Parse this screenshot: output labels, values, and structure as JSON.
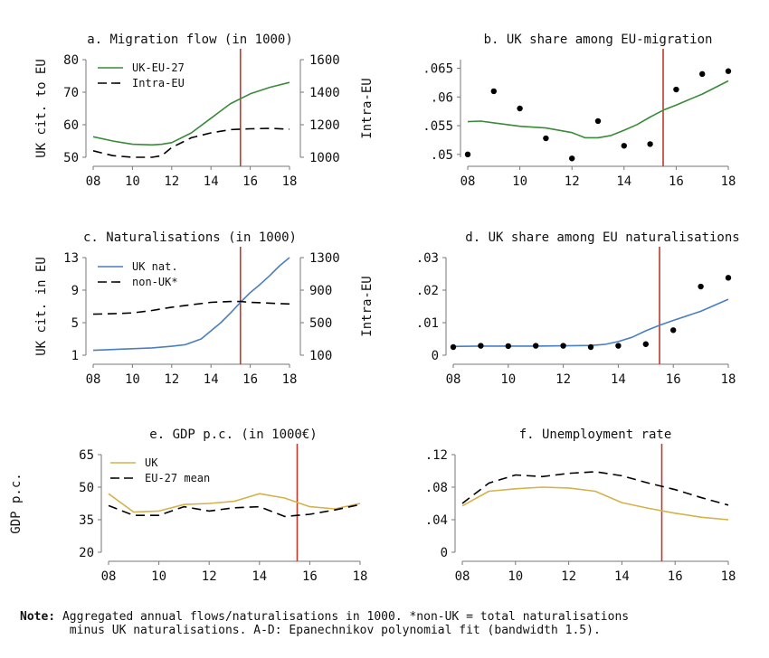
{
  "note": {
    "label": "Note:",
    "line1": " Aggregated annual flows/naturalisations in 1000. *non-UK = total naturalisations",
    "line2": "       minus UK naturalisations. A-D: Epanechnikov polynomial fit (bandwidth 1.5)."
  },
  "colors": {
    "green": "#3a8a3a",
    "blue": "#4a7fc0",
    "gold": "#d4b24c",
    "black": "#000000",
    "red": "#c0392b",
    "axis": "#777777"
  },
  "chart_data": [
    {
      "id": "a",
      "type": "line",
      "title": "a. Migration flow (in 1000)",
      "ylabel": "UK cit. to EU",
      "y2label": "Intra-EU",
      "xticks": [
        "08",
        "10",
        "12",
        "14",
        "16",
        "18"
      ],
      "xlim": [
        8,
        18
      ],
      "ylim": [
        50,
        80
      ],
      "yticks": [
        "50",
        "60",
        "70",
        "80"
      ],
      "y2lim": [
        1000,
        1600
      ],
      "y2ticks": [
        "1000",
        "1200",
        "1400",
        "1600"
      ],
      "vline": 15.5,
      "series": [
        {
          "name": "UK-EU-27",
          "color": "green",
          "dash": "",
          "axis": "left",
          "x": [
            8,
            9,
            10,
            11,
            11.5,
            12,
            13,
            14,
            15,
            16,
            17,
            18
          ],
          "y": [
            56.3,
            55,
            54,
            53.8,
            54,
            54.5,
            57.5,
            62,
            66.5,
            69.5,
            71.5,
            73
          ]
        },
        {
          "name": "Intra-EU",
          "color": "black",
          "dash": "10,6",
          "axis": "right",
          "x": [
            8,
            9,
            10,
            11,
            11.5,
            12,
            13,
            14,
            15,
            16,
            17,
            18
          ],
          "y": [
            1040,
            1010,
            1000,
            1000,
            1010,
            1060,
            1120,
            1150,
            1170,
            1175,
            1178,
            1172
          ]
        }
      ],
      "legend": "top-left"
    },
    {
      "id": "b",
      "type": "line",
      "title": "b. UK share among EU-migration",
      "ylabel": "Intra-EU",
      "xticks": [
        "08",
        "10",
        "12",
        "14",
        "16",
        "18"
      ],
      "xlim": [
        8,
        18
      ],
      "ylim": [
        0.0495,
        0.0665
      ],
      "yticks": [
        ".05",
        ".055",
        ".06",
        ".065"
      ],
      "yvals": [
        0.05,
        0.055,
        0.06,
        0.065
      ],
      "vline": 15.5,
      "series": [
        {
          "color": "green",
          "dash": "",
          "x": [
            8,
            8.5,
            9,
            10,
            11,
            12,
            12.5,
            13,
            13.5,
            14,
            14.5,
            15,
            15.5,
            16,
            17,
            18
          ],
          "y": [
            0.0557,
            0.0558,
            0.0555,
            0.0549,
            0.0546,
            0.0538,
            0.0529,
            0.0529,
            0.0533,
            0.0542,
            0.0552,
            0.0565,
            0.0577,
            0.0586,
            0.0605,
            0.0628
          ]
        },
        {
          "type": "scatter",
          "color": "black",
          "x": [
            8,
            9,
            10,
            11,
            12,
            13,
            14,
            15,
            16,
            17,
            18
          ],
          "y": [
            0.05,
            0.061,
            0.058,
            0.0528,
            0.0493,
            0.0558,
            0.0515,
            0.0518,
            0.0613,
            0.064,
            0.0645
          ]
        }
      ]
    },
    {
      "id": "c",
      "type": "line",
      "title": "c. Naturalisations (in 1000)",
      "ylabel": "UK cit. in EU",
      "xticks": [
        "08",
        "10",
        "12",
        "14",
        "16",
        "18"
      ],
      "xlim": [
        8,
        18
      ],
      "ylim": [
        1,
        13
      ],
      "yticks": [
        "1",
        "5",
        "9",
        "13"
      ],
      "y2lim": [
        100,
        1300
      ],
      "y2ticks": [
        "100",
        "500",
        "900",
        "1300"
      ],
      "vline": 15.5,
      "series": [
        {
          "name": "UK nat.",
          "color": "blue",
          "dash": "",
          "axis": "left",
          "x": [
            8,
            9,
            10,
            11,
            12,
            12.7,
            13.5,
            14,
            14.5,
            15,
            15.5,
            16,
            16.5,
            17,
            17.5,
            18
          ],
          "y": [
            1.6,
            1.7,
            1.8,
            1.9,
            2.1,
            2.3,
            3,
            4,
            5,
            6.2,
            7.5,
            8.7,
            9.7,
            10.8,
            12,
            13
          ]
        },
        {
          "name": "non-UK*",
          "color": "black",
          "dash": "10,6",
          "axis": "right",
          "x": [
            8,
            9,
            10,
            11,
            12,
            13,
            14,
            15,
            15.5,
            16,
            17,
            18
          ],
          "y": [
            605,
            610,
            620,
            650,
            690,
            720,
            750,
            760,
            760,
            750,
            740,
            730
          ]
        }
      ],
      "legend": "top-left"
    },
    {
      "id": "d",
      "type": "line",
      "title": "d. UK share among EU naturalisations",
      "ylabel": "Intra-EU",
      "xticks": [
        "08",
        "10",
        "12",
        "14",
        "16",
        "18"
      ],
      "xlim": [
        8,
        18
      ],
      "ylim": [
        0,
        0.03
      ],
      "yticks": [
        "0",
        ".01",
        ".02",
        ".03"
      ],
      "yvals": [
        0,
        0.01,
        0.02,
        0.03
      ],
      "vline": 15.5,
      "series": [
        {
          "color": "blue",
          "dash": "",
          "x": [
            8,
            9,
            10,
            11,
            12,
            13,
            13.5,
            14,
            14.5,
            15,
            15.5,
            16,
            17,
            18
          ],
          "y": [
            0.0027,
            0.0028,
            0.0028,
            0.0028,
            0.0029,
            0.003,
            0.0033,
            0.0042,
            0.0055,
            0.0075,
            0.0092,
            0.0107,
            0.0135,
            0.0172
          ]
        },
        {
          "type": "scatter",
          "color": "black",
          "x": [
            8,
            9,
            10,
            11,
            12,
            13,
            14,
            15,
            16,
            17,
            18
          ],
          "y": [
            0.0025,
            0.0029,
            0.0028,
            0.0029,
            0.0029,
            0.0025,
            0.0029,
            0.0034,
            0.0077,
            0.0211,
            0.0238
          ]
        }
      ]
    },
    {
      "id": "e",
      "type": "line",
      "title": "e. GDP p.c. (in 1000€)",
      "ylabel": "GDP p.c.",
      "xticks": [
        "08",
        "10",
        "12",
        "14",
        "16",
        "18"
      ],
      "xlim": [
        8,
        18
      ],
      "ylim": [
        20,
        65
      ],
      "yticks": [
        "20",
        "35",
        "50",
        "65"
      ],
      "yvals": [
        20,
        35,
        50,
        65
      ],
      "vline": 15.5,
      "series": [
        {
          "name": "UK",
          "color": "gold",
          "dash": "",
          "x": [
            8,
            9,
            10,
            11,
            12,
            13,
            14,
            15,
            16,
            17,
            18
          ],
          "y": [
            47,
            38.5,
            39,
            42,
            42.5,
            43.5,
            47,
            45,
            41,
            40,
            42.5
          ]
        },
        {
          "name": "EU-27 mean",
          "color": "black",
          "dash": "10,6",
          "x": [
            8,
            9,
            10,
            11,
            12,
            13,
            14,
            15,
            16,
            17,
            18
          ],
          "y": [
            41.5,
            37,
            37,
            41,
            39,
            40.5,
            41,
            36.5,
            37.5,
            39.5,
            42
          ]
        }
      ],
      "legend": "top-left"
    },
    {
      "id": "f",
      "type": "line",
      "title": "f. Unemployment rate",
      "xticks": [
        "08",
        "10",
        "12",
        "14",
        "16",
        "18"
      ],
      "xlim": [
        8,
        18
      ],
      "ylim": [
        0,
        0.12
      ],
      "yticks": [
        "0",
        ".04",
        ".08",
        ".12"
      ],
      "yvals": [
        0,
        0.04,
        0.08,
        0.12
      ],
      "vline": 15.5,
      "series": [
        {
          "color": "gold",
          "dash": "",
          "x": [
            8,
            9,
            10,
            11,
            12,
            13,
            14,
            15,
            16,
            17,
            18
          ],
          "y": [
            0.057,
            0.075,
            0.078,
            0.08,
            0.079,
            0.075,
            0.061,
            0.054,
            0.048,
            0.043,
            0.04
          ]
        },
        {
          "color": "black",
          "dash": "10,6",
          "x": [
            8,
            9,
            10,
            11,
            12,
            13,
            14,
            15,
            16,
            17,
            18
          ],
          "y": [
            0.06,
            0.085,
            0.095,
            0.093,
            0.097,
            0.099,
            0.094,
            0.085,
            0.077,
            0.067,
            0.058
          ]
        }
      ]
    }
  ]
}
